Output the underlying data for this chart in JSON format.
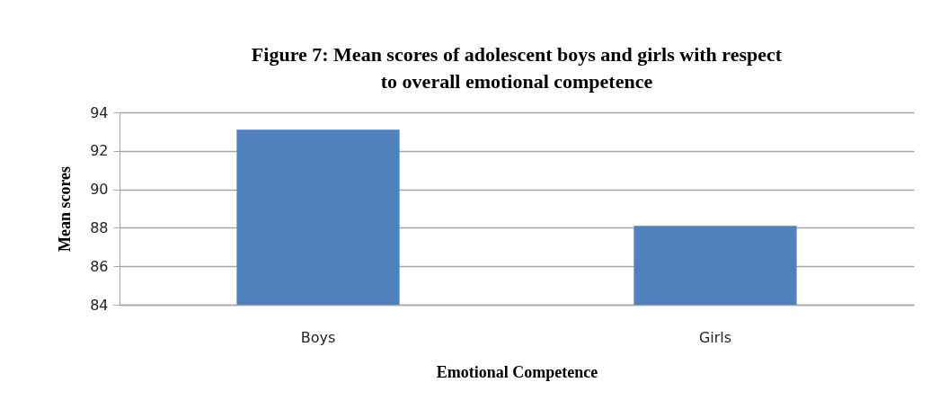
{
  "chart_data": {
    "type": "bar",
    "title": "Figure 7: Mean scores of adolescent boys and girls with respect\nto overall emotional competence",
    "xlabel": "Emotional Competence",
    "ylabel": "Mean scores",
    "categories": [
      "Boys",
      "Girls"
    ],
    "values": [
      93.1,
      88.1
    ],
    "color": "#4f81bd",
    "ylim": [
      84,
      94
    ],
    "yticks": [
      84,
      86,
      88,
      90,
      92,
      94
    ],
    "grid": "y"
  }
}
